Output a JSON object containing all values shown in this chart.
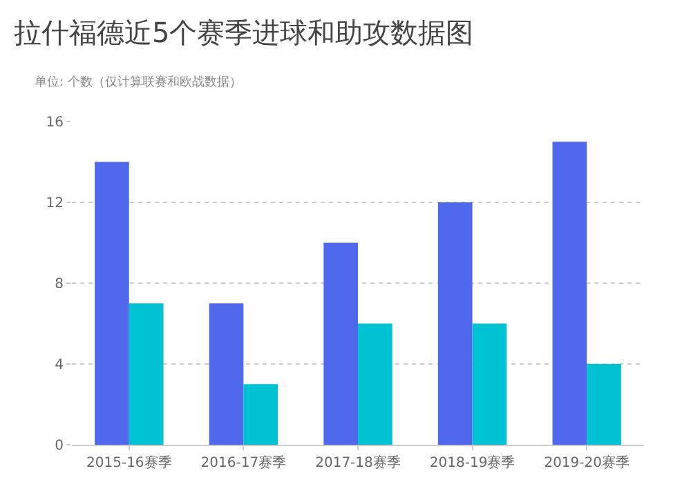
{
  "chart_data": {
    "type": "bar",
    "title": "拉什福德近5个赛季进球和助攻数据图",
    "subtitle": "单位: 个数（仅计算联赛和欧战数据）",
    "categories": [
      "2015-16赛季",
      "2016-17赛季",
      "2017-18赛季",
      "2018-19赛季",
      "2019-20赛季"
    ],
    "series": [
      {
        "color": "#5068ec",
        "values": [
          14,
          7,
          10,
          12,
          15
        ]
      },
      {
        "color": "#00c2d2",
        "values": [
          7,
          3,
          6,
          6,
          4
        ]
      }
    ],
    "ylim": [
      0,
      16
    ],
    "yticks": [
      0,
      4,
      8,
      12,
      16
    ],
    "grid": "y"
  }
}
